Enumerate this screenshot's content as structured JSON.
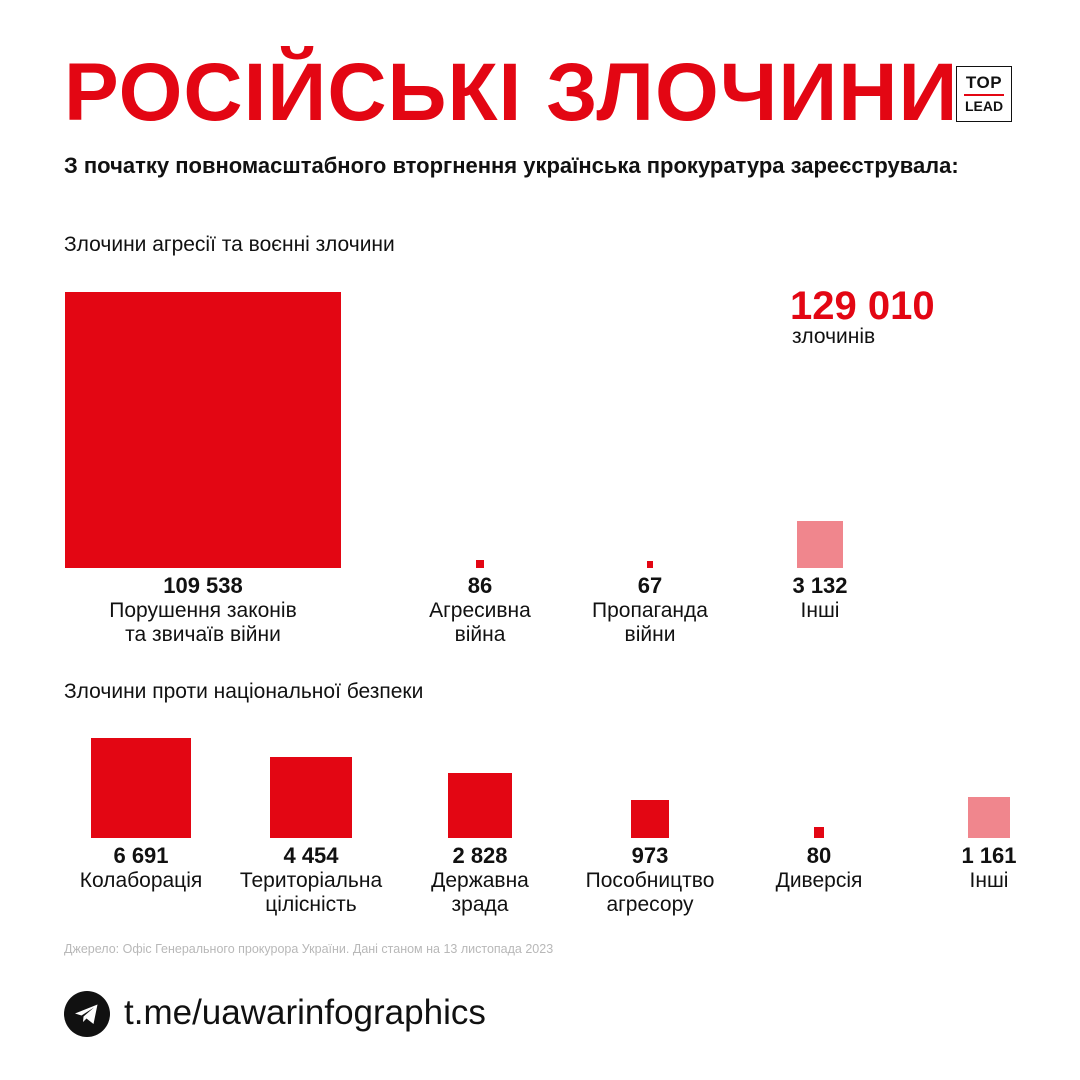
{
  "title": "РОСІЙСЬКІ ЗЛОЧИНИ",
  "logo": {
    "line1": "TOP",
    "line2": "LEAD"
  },
  "subtitle": "З початку повномасштабного вторгнення українська прокуратура зареєструвала:",
  "colors": {
    "primary": "#e30613",
    "others": "#f0868d",
    "text": "#111111",
    "source": "#b8b8b8"
  },
  "chart_data": [
    {
      "type": "area",
      "title": "Злочини агресії та воєнні злочини",
      "total": {
        "value": "129 010",
        "unit": "злочинів"
      },
      "categories": [
        "Порушення законів та звичаїв війни",
        "Агресивна війна",
        "Пропаганда війни",
        "Інші"
      ],
      "label_lines": [
        [
          "Порушення законів",
          "та звичаїв війни"
        ],
        [
          "Агресивна",
          "війна"
        ],
        [
          "Пропаганда",
          "війни"
        ],
        [
          "Інші"
        ]
      ],
      "values": [
        109538,
        86,
        67,
        3132
      ],
      "value_labels": [
        "109 538",
        "86",
        "67",
        "3 132"
      ],
      "category_kind": [
        "primary",
        "primary",
        "primary",
        "others"
      ]
    },
    {
      "type": "area",
      "title": "Злочини проти національної безпеки",
      "categories": [
        "Колаборація",
        "Територіальна цілісність",
        "Державна зрада",
        "Пособництво агресору",
        "Диверсія",
        "Інші"
      ],
      "label_lines": [
        [
          "Колаборація"
        ],
        [
          "Територіальна",
          "цілісність"
        ],
        [
          "Державна",
          "зрада"
        ],
        [
          "Пособництво",
          "агресору"
        ],
        [
          "Диверсія"
        ],
        [
          "Інші"
        ]
      ],
      "values": [
        6691,
        4454,
        2828,
        973,
        80,
        1161
      ],
      "value_labels": [
        "6 691",
        "4 454",
        "2 828",
        "973",
        "80",
        "1 161"
      ],
      "category_kind": [
        "primary",
        "primary",
        "primary",
        "primary",
        "primary",
        "others"
      ]
    }
  ],
  "source": "Джерело: Офіс Генерального прокурора України. Дані станом на 13 листопада 2023",
  "footer": {
    "icon": "telegram-icon",
    "channel": "t.me/uawarinfographics"
  }
}
